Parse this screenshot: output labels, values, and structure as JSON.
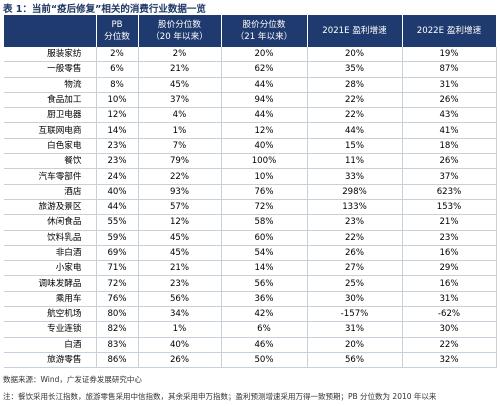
{
  "title": "表 1：当前“疫后修复”相关的消费行业数据一览",
  "table": {
    "columns": [
      "PB\n分位数",
      "股价分位数\n（20 年以来）",
      "股价分位数\n（21 年以来）",
      "2021E 盈利增速",
      "2022E 盈利增速"
    ],
    "rows": [
      [
        "服装家纺",
        "2%",
        "2%",
        "20%",
        "20%",
        "19%"
      ],
      [
        "一般零售",
        "6%",
        "21%",
        "62%",
        "35%",
        "87%"
      ],
      [
        "物流",
        "8%",
        "45%",
        "44%",
        "28%",
        "31%"
      ],
      [
        "食品加工",
        "10%",
        "37%",
        "94%",
        "22%",
        "26%"
      ],
      [
        "厨卫电器",
        "12%",
        "4%",
        "44%",
        "22%",
        "43%"
      ],
      [
        "互联网电商",
        "14%",
        "1%",
        "12%",
        "44%",
        "41%"
      ],
      [
        "白色家电",
        "23%",
        "7%",
        "40%",
        "15%",
        "18%"
      ],
      [
        "餐饮",
        "23%",
        "79%",
        "100%",
        "11%",
        "26%"
      ],
      [
        "汽车零部件",
        "24%",
        "22%",
        "10%",
        "33%",
        "37%"
      ],
      [
        "酒店",
        "40%",
        "93%",
        "76%",
        "298%",
        "623%"
      ],
      [
        "旅游及景区",
        "44%",
        "57%",
        "72%",
        "133%",
        "153%"
      ],
      [
        "休闲食品",
        "55%",
        "12%",
        "58%",
        "23%",
        "21%"
      ],
      [
        "饮料乳品",
        "59%",
        "45%",
        "60%",
        "22%",
        "23%"
      ],
      [
        "非白酒",
        "69%",
        "45%",
        "54%",
        "26%",
        "16%"
      ],
      [
        "小家电",
        "71%",
        "21%",
        "14%",
        "27%",
        "29%"
      ],
      [
        "调味发酵品",
        "72%",
        "23%",
        "56%",
        "25%",
        "16%"
      ],
      [
        "乘用车",
        "76%",
        "56%",
        "36%",
        "30%",
        "31%"
      ],
      [
        "航空机场",
        "80%",
        "34%",
        "42%",
        "-157%",
        "-62%"
      ],
      [
        "专业连锁",
        "82%",
        "1%",
        "6%",
        "31%",
        "30%"
      ],
      [
        "白酒",
        "83%",
        "40%",
        "46%",
        "20%",
        "22%"
      ],
      [
        "旅游零售",
        "86%",
        "26%",
        "50%",
        "56%",
        "32%"
      ]
    ]
  },
  "source": "数据来源：Wind，广发证券发展研究中心",
  "note": "注：餐饮采用长江指数，旅游零售采用中信指数，其余采用申万指数；盈利预测增速采用万得一致预期；PB 分位数为 2010 年以来"
}
